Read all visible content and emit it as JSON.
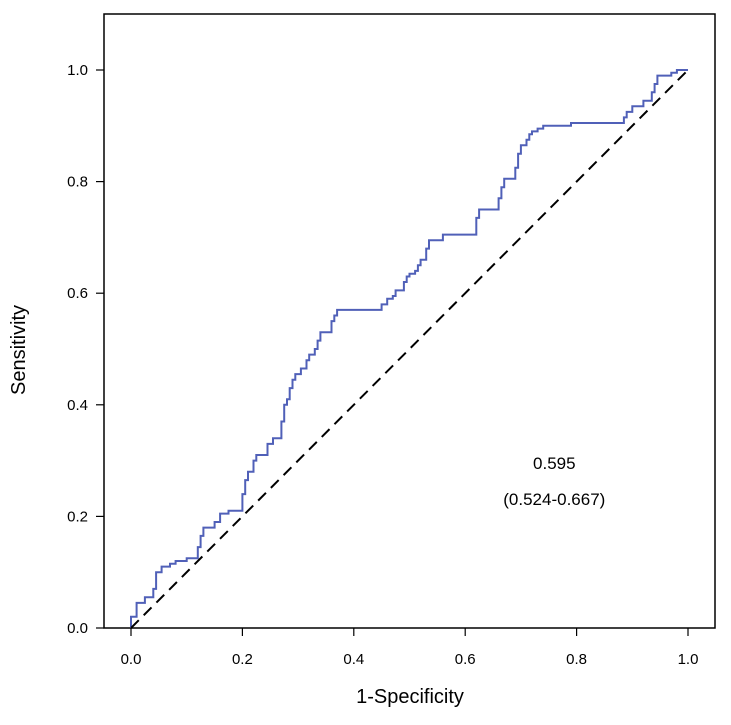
{
  "chart_data": {
    "type": "line",
    "title": "",
    "xlabel": "1-Specificity",
    "ylabel": "Sensitivity",
    "xlim": [
      0.0,
      1.0
    ],
    "ylim": [
      0.0,
      1.0
    ],
    "x_ticks": [
      "0.0",
      "0.2",
      "0.4",
      "0.6",
      "0.8",
      "1.0"
    ],
    "y_ticks": [
      "0.0",
      "0.2",
      "0.4",
      "0.6",
      "0.8",
      "1.0"
    ],
    "grid": false,
    "legend": "none",
    "annotation": {
      "line1": "0.595",
      "line2": "(0.524-0.667)",
      "x": 0.76,
      "y_line1": 0.285,
      "y_line2": 0.22
    },
    "series": [
      {
        "style": "step",
        "color": "#5060b8",
        "points": [
          [
            0.0,
            0.0
          ],
          [
            0.0,
            0.02
          ],
          [
            0.01,
            0.02
          ],
          [
            0.01,
            0.045
          ],
          [
            0.025,
            0.045
          ],
          [
            0.025,
            0.055
          ],
          [
            0.04,
            0.055
          ],
          [
            0.04,
            0.07
          ],
          [
            0.045,
            0.07
          ],
          [
            0.045,
            0.1
          ],
          [
            0.055,
            0.1
          ],
          [
            0.055,
            0.11
          ],
          [
            0.07,
            0.11
          ],
          [
            0.07,
            0.115
          ],
          [
            0.08,
            0.115
          ],
          [
            0.08,
            0.12
          ],
          [
            0.1,
            0.12
          ],
          [
            0.1,
            0.125
          ],
          [
            0.12,
            0.125
          ],
          [
            0.12,
            0.145
          ],
          [
            0.125,
            0.145
          ],
          [
            0.125,
            0.165
          ],
          [
            0.13,
            0.165
          ],
          [
            0.13,
            0.18
          ],
          [
            0.15,
            0.18
          ],
          [
            0.15,
            0.19
          ],
          [
            0.16,
            0.19
          ],
          [
            0.16,
            0.205
          ],
          [
            0.175,
            0.205
          ],
          [
            0.175,
            0.21
          ],
          [
            0.2,
            0.21
          ],
          [
            0.2,
            0.24
          ],
          [
            0.205,
            0.24
          ],
          [
            0.205,
            0.265
          ],
          [
            0.21,
            0.265
          ],
          [
            0.21,
            0.28
          ],
          [
            0.22,
            0.28
          ],
          [
            0.22,
            0.3
          ],
          [
            0.225,
            0.3
          ],
          [
            0.225,
            0.31
          ],
          [
            0.245,
            0.31
          ],
          [
            0.245,
            0.33
          ],
          [
            0.255,
            0.33
          ],
          [
            0.255,
            0.34
          ],
          [
            0.27,
            0.34
          ],
          [
            0.27,
            0.37
          ],
          [
            0.275,
            0.37
          ],
          [
            0.275,
            0.4
          ],
          [
            0.28,
            0.4
          ],
          [
            0.28,
            0.41
          ],
          [
            0.285,
            0.41
          ],
          [
            0.285,
            0.43
          ],
          [
            0.29,
            0.43
          ],
          [
            0.29,
            0.445
          ],
          [
            0.295,
            0.445
          ],
          [
            0.295,
            0.455
          ],
          [
            0.305,
            0.455
          ],
          [
            0.305,
            0.465
          ],
          [
            0.315,
            0.465
          ],
          [
            0.315,
            0.48
          ],
          [
            0.32,
            0.48
          ],
          [
            0.32,
            0.49
          ],
          [
            0.33,
            0.49
          ],
          [
            0.33,
            0.5
          ],
          [
            0.335,
            0.5
          ],
          [
            0.335,
            0.515
          ],
          [
            0.34,
            0.515
          ],
          [
            0.34,
            0.53
          ],
          [
            0.36,
            0.53
          ],
          [
            0.36,
            0.55
          ],
          [
            0.365,
            0.55
          ],
          [
            0.365,
            0.56
          ],
          [
            0.37,
            0.56
          ],
          [
            0.37,
            0.57
          ],
          [
            0.45,
            0.57
          ],
          [
            0.45,
            0.58
          ],
          [
            0.46,
            0.58
          ],
          [
            0.46,
            0.59
          ],
          [
            0.47,
            0.59
          ],
          [
            0.47,
            0.595
          ],
          [
            0.475,
            0.595
          ],
          [
            0.475,
            0.605
          ],
          [
            0.49,
            0.605
          ],
          [
            0.49,
            0.62
          ],
          [
            0.495,
            0.62
          ],
          [
            0.495,
            0.63
          ],
          [
            0.5,
            0.63
          ],
          [
            0.5,
            0.635
          ],
          [
            0.51,
            0.635
          ],
          [
            0.51,
            0.64
          ],
          [
            0.515,
            0.64
          ],
          [
            0.515,
            0.65
          ],
          [
            0.52,
            0.65
          ],
          [
            0.52,
            0.66
          ],
          [
            0.53,
            0.66
          ],
          [
            0.53,
            0.68
          ],
          [
            0.535,
            0.68
          ],
          [
            0.535,
            0.695
          ],
          [
            0.56,
            0.695
          ],
          [
            0.56,
            0.705
          ],
          [
            0.62,
            0.705
          ],
          [
            0.62,
            0.735
          ],
          [
            0.625,
            0.735
          ],
          [
            0.625,
            0.75
          ],
          [
            0.66,
            0.75
          ],
          [
            0.66,
            0.77
          ],
          [
            0.665,
            0.77
          ],
          [
            0.665,
            0.79
          ],
          [
            0.67,
            0.79
          ],
          [
            0.67,
            0.805
          ],
          [
            0.69,
            0.805
          ],
          [
            0.69,
            0.825
          ],
          [
            0.695,
            0.825
          ],
          [
            0.695,
            0.85
          ],
          [
            0.7,
            0.85
          ],
          [
            0.7,
            0.865
          ],
          [
            0.71,
            0.865
          ],
          [
            0.71,
            0.875
          ],
          [
            0.715,
            0.875
          ],
          [
            0.715,
            0.885
          ],
          [
            0.72,
            0.885
          ],
          [
            0.72,
            0.89
          ],
          [
            0.73,
            0.89
          ],
          [
            0.73,
            0.895
          ],
          [
            0.74,
            0.895
          ],
          [
            0.74,
            0.9
          ],
          [
            0.79,
            0.9
          ],
          [
            0.79,
            0.905
          ],
          [
            0.885,
            0.905
          ],
          [
            0.885,
            0.915
          ],
          [
            0.89,
            0.915
          ],
          [
            0.89,
            0.925
          ],
          [
            0.9,
            0.925
          ],
          [
            0.9,
            0.935
          ],
          [
            0.92,
            0.935
          ],
          [
            0.92,
            0.945
          ],
          [
            0.935,
            0.945
          ],
          [
            0.935,
            0.96
          ],
          [
            0.94,
            0.96
          ],
          [
            0.94,
            0.975
          ],
          [
            0.945,
            0.975
          ],
          [
            0.945,
            0.99
          ],
          [
            0.97,
            0.99
          ],
          [
            0.97,
            0.995
          ],
          [
            0.98,
            0.995
          ],
          [
            0.98,
            1.0
          ],
          [
            1.0,
            1.0
          ]
        ]
      },
      {
        "style": "dashed",
        "color": "#000000",
        "points": [
          [
            0.0,
            0.0
          ],
          [
            1.0,
            1.0
          ]
        ]
      }
    ]
  }
}
